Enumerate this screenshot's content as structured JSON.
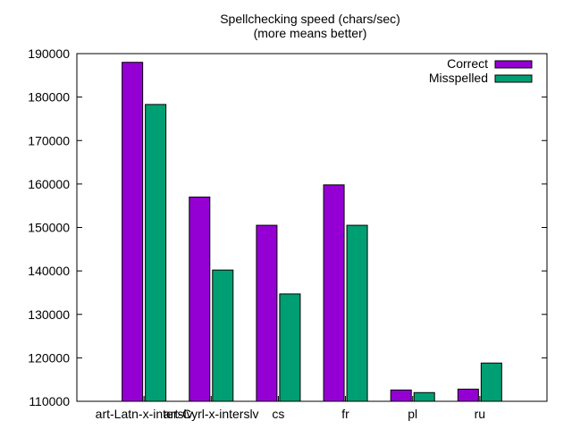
{
  "chart_data": {
    "type": "bar",
    "title": "Spellchecking speed (chars/sec)",
    "subtitle": "(more means better)",
    "categories": [
      "art-Latn-x-interslv",
      "art-Cyrl-x-interslv",
      "cs",
      "fr",
      "pl",
      "ru"
    ],
    "series": [
      {
        "name": "Correct",
        "color": "#9400d3",
        "values": [
          188000,
          157000,
          150500,
          159800,
          112600,
          112800
        ]
      },
      {
        "name": "Misspelled",
        "color": "#009e73",
        "values": [
          178300,
          140200,
          134700,
          150500,
          112000,
          118800
        ]
      }
    ],
    "ylim": [
      110000,
      190000
    ],
    "yticks": [
      110000,
      120000,
      130000,
      140000,
      150000,
      160000,
      170000,
      180000,
      190000
    ],
    "grid": false,
    "legend": "top-right"
  }
}
